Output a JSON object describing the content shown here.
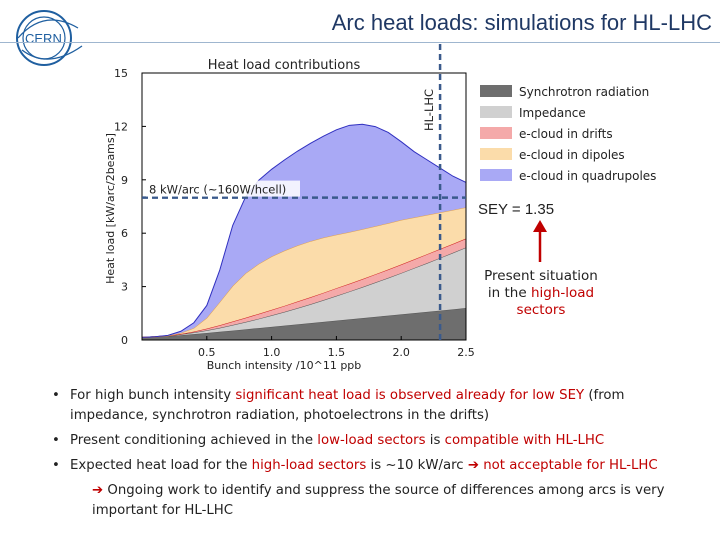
{
  "slide": {
    "title": "Arc heat loads: simulations for HL-LHC",
    "logo_text": "CERN",
    "sey_label": "SEY = 1.35",
    "side_note": {
      "line1": "Present situation",
      "line2_plain": "in the ",
      "line2_red": "high-load",
      "line3_red": "sectors"
    },
    "bullets": [
      {
        "p1": "For high bunch intensity ",
        "r1": "significant heat load is observed already for low SEY",
        "p2": " (from impedance, synchrotron radiation, photoelectrons in the drifts)"
      },
      {
        "p1": "Present conditioning achieved in the ",
        "r1": "low-load sectors",
        "p2": " is ",
        "r2": "compatible with HL-LHC"
      },
      {
        "p1": "Expected heat load for the ",
        "r1": "high-load sectors",
        "p2": " is ~10 kW/arc ",
        "r2": "not acceptable for HL-LHC",
        "sub": "Ongoing work to identify and suppress the source of differences among arcs is very important for HL-LHC"
      }
    ],
    "colors": {
      "title": "#1f3864",
      "emphasis": "#c00000",
      "dashed_line": "#3a5a8c"
    }
  },
  "chart_data": {
    "type": "area",
    "title": "Heat load contributions",
    "xlabel": "Bunch intensity /10^11 ppb",
    "ylabel": "Heat load [kW/arc/2beams]",
    "xlim": [
      0.0,
      2.5
    ],
    "ylim": [
      0,
      15
    ],
    "xticks": [
      0.5,
      1.0,
      1.5,
      2.0,
      2.5
    ],
    "yticks": [
      0,
      3,
      6,
      9,
      12,
      15
    ],
    "x": [
      0.0,
      0.1,
      0.2,
      0.3,
      0.4,
      0.5,
      0.6,
      0.7,
      0.8,
      0.9,
      1.0,
      1.1,
      1.2,
      1.3,
      1.4,
      1.5,
      1.6,
      1.7,
      1.8,
      1.9,
      2.0,
      2.1,
      2.2,
      2.3,
      2.4,
      2.5
    ],
    "series": [
      {
        "name": "Synchrotron radiation",
        "color": "#6e6e6e",
        "values": [
          0.15,
          0.18,
          0.22,
          0.27,
          0.33,
          0.39,
          0.46,
          0.53,
          0.6,
          0.67,
          0.74,
          0.81,
          0.88,
          0.95,
          1.02,
          1.09,
          1.16,
          1.23,
          1.3,
          1.37,
          1.44,
          1.51,
          1.58,
          1.65,
          1.72,
          1.8
        ]
      },
      {
        "name": "Impedance",
        "color": "#d0d0d0",
        "values": [
          0.0,
          0.0,
          0.02,
          0.05,
          0.09,
          0.15,
          0.22,
          0.31,
          0.41,
          0.52,
          0.64,
          0.77,
          0.91,
          1.06,
          1.22,
          1.39,
          1.56,
          1.74,
          1.93,
          2.12,
          2.32,
          2.53,
          2.74,
          2.96,
          3.18,
          3.4
        ]
      },
      {
        "name": "e-cloud in drifts",
        "color": "#f4a9a9",
        "values": [
          0.0,
          0.0,
          0.0,
          0.02,
          0.05,
          0.1,
          0.15,
          0.2,
          0.24,
          0.28,
          0.31,
          0.34,
          0.37,
          0.39,
          0.41,
          0.43,
          0.44,
          0.45,
          0.46,
          0.47,
          0.48,
          0.49,
          0.5,
          0.5,
          0.5,
          0.5
        ]
      },
      {
        "name": "e-cloud in dipoles",
        "color": "#fbdcaa",
        "values": [
          0.0,
          0.0,
          0.0,
          0.05,
          0.2,
          0.6,
          1.3,
          2.0,
          2.5,
          2.8,
          3.0,
          3.1,
          3.15,
          3.15,
          3.1,
          3.0,
          2.9,
          2.8,
          2.7,
          2.6,
          2.5,
          2.35,
          2.2,
          2.05,
          1.9,
          1.75
        ]
      },
      {
        "name": "e-cloud in quadrupoles",
        "color": "#a9a9f5",
        "values": [
          0.0,
          0.0,
          0.02,
          0.1,
          0.3,
          0.7,
          1.8,
          3.4,
          4.3,
          4.7,
          4.9,
          5.1,
          5.3,
          5.5,
          5.7,
          5.9,
          6.0,
          5.9,
          5.6,
          5.1,
          4.4,
          3.7,
          3.1,
          2.5,
          1.9,
          1.4
        ]
      }
    ],
    "legend_position": "right",
    "annotations": [
      {
        "text": "8 kW/arc (~160W/hcell)",
        "y": 8.0
      },
      {
        "text": "HL-LHC",
        "x": 2.3
      }
    ],
    "grid": false
  }
}
